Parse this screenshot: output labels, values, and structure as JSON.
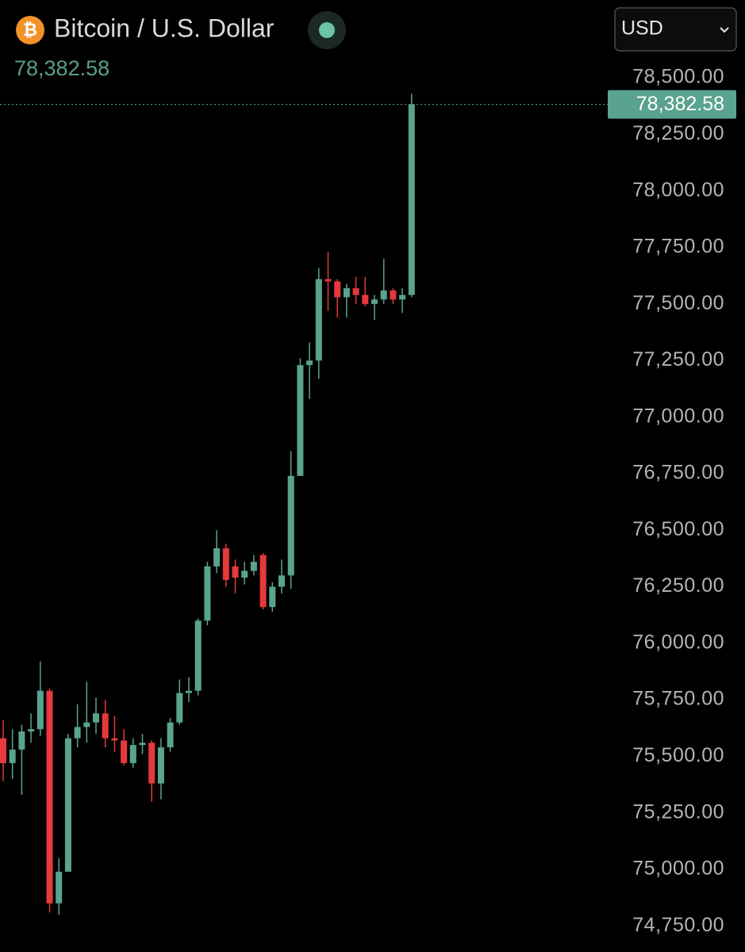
{
  "header": {
    "symbol": "₿",
    "title": "Bitcoin / U.S. Dollar",
    "currency": "USD"
  },
  "chart_data": {
    "type": "candlestick",
    "up_color": "#5aa38e",
    "down_color": "#e5393b",
    "series": [
      {
        "open": [
          75580,
          75470,
          75530,
          75610,
          75620,
          75790,
          74850,
          74990,
          75580,
          75630,
          75650,
          75690,
          75580,
          75570,
          75470,
          75550,
          75560,
          75380,
          75540,
          75650,
          75780,
          75790,
          76100,
          76340,
          76420,
          76340,
          76290,
          76320,
          76390,
          76160,
          76250,
          76300,
          76740,
          77230,
          77250,
          77610,
          77600,
          77530,
          77570,
          77540,
          77500,
          77520,
          77560,
          77520,
          77540
        ],
        "high": [
          75660,
          75620,
          75640,
          75690,
          75920,
          75800,
          75050,
          75600,
          75730,
          75830,
          75760,
          75750,
          75680,
          75620,
          75580,
          75600,
          75570,
          75580,
          75670,
          75840,
          75850,
          76110,
          76360,
          76500,
          76440,
          76370,
          76360,
          76390,
          76400,
          76270,
          76370,
          76850,
          77260,
          77330,
          77660,
          77730,
          77610,
          77590,
          77620,
          77620,
          77540,
          77700,
          77570,
          77570,
          78430
        ],
        "low": [
          75390,
          75400,
          75330,
          75560,
          75590,
          74810,
          74800,
          74990,
          75540,
          75560,
          75600,
          75540,
          75520,
          75460,
          75450,
          75510,
          75300,
          75310,
          75520,
          75640,
          75740,
          75770,
          76080,
          76310,
          76250,
          76220,
          76260,
          76300,
          76150,
          76140,
          76220,
          76240,
          76740,
          77080,
          77170,
          77470,
          77440,
          77440,
          77500,
          77490,
          77430,
          77500,
          77500,
          77460,
          77530
        ],
        "close": [
          75470,
          75530,
          75610,
          75620,
          75790,
          74850,
          74990,
          75580,
          75630,
          75650,
          75690,
          75580,
          75570,
          75470,
          75550,
          75560,
          75380,
          75540,
          75650,
          75780,
          75790,
          76100,
          76340,
          76420,
          76280,
          76290,
          76320,
          76360,
          76160,
          76250,
          76300,
          76740,
          77230,
          77250,
          77610,
          77600,
          77530,
          77570,
          77540,
          77500,
          77520,
          77560,
          77520,
          77540,
          78382.58
        ]
      }
    ],
    "ylim": [
      74635,
      78560
    ],
    "yticks": [
      {
        "value": 74750,
        "label": "74,750.00"
      },
      {
        "value": 75000,
        "label": "75,000.00"
      },
      {
        "value": 75250,
        "label": "75,250.00"
      },
      {
        "value": 75500,
        "label": "75,500.00"
      },
      {
        "value": 75750,
        "label": "75,750.00"
      },
      {
        "value": 76000,
        "label": "76,000.00"
      },
      {
        "value": 76250,
        "label": "76,250.00"
      },
      {
        "value": 76500,
        "label": "76,500.00"
      },
      {
        "value": 76750,
        "label": "76,750.00"
      },
      {
        "value": 77000,
        "label": "77,000.00"
      },
      {
        "value": 77250,
        "label": "77,250.00"
      },
      {
        "value": 77500,
        "label": "77,500.00"
      },
      {
        "value": 77750,
        "label": "77,750.00"
      },
      {
        "value": 78000,
        "label": "78,000.00"
      },
      {
        "value": 78250,
        "label": "78,250.00"
      },
      {
        "value": 78500,
        "label": "78,500.00"
      }
    ],
    "last_price": {
      "value": 78382.58,
      "label": "78,382.58"
    }
  }
}
